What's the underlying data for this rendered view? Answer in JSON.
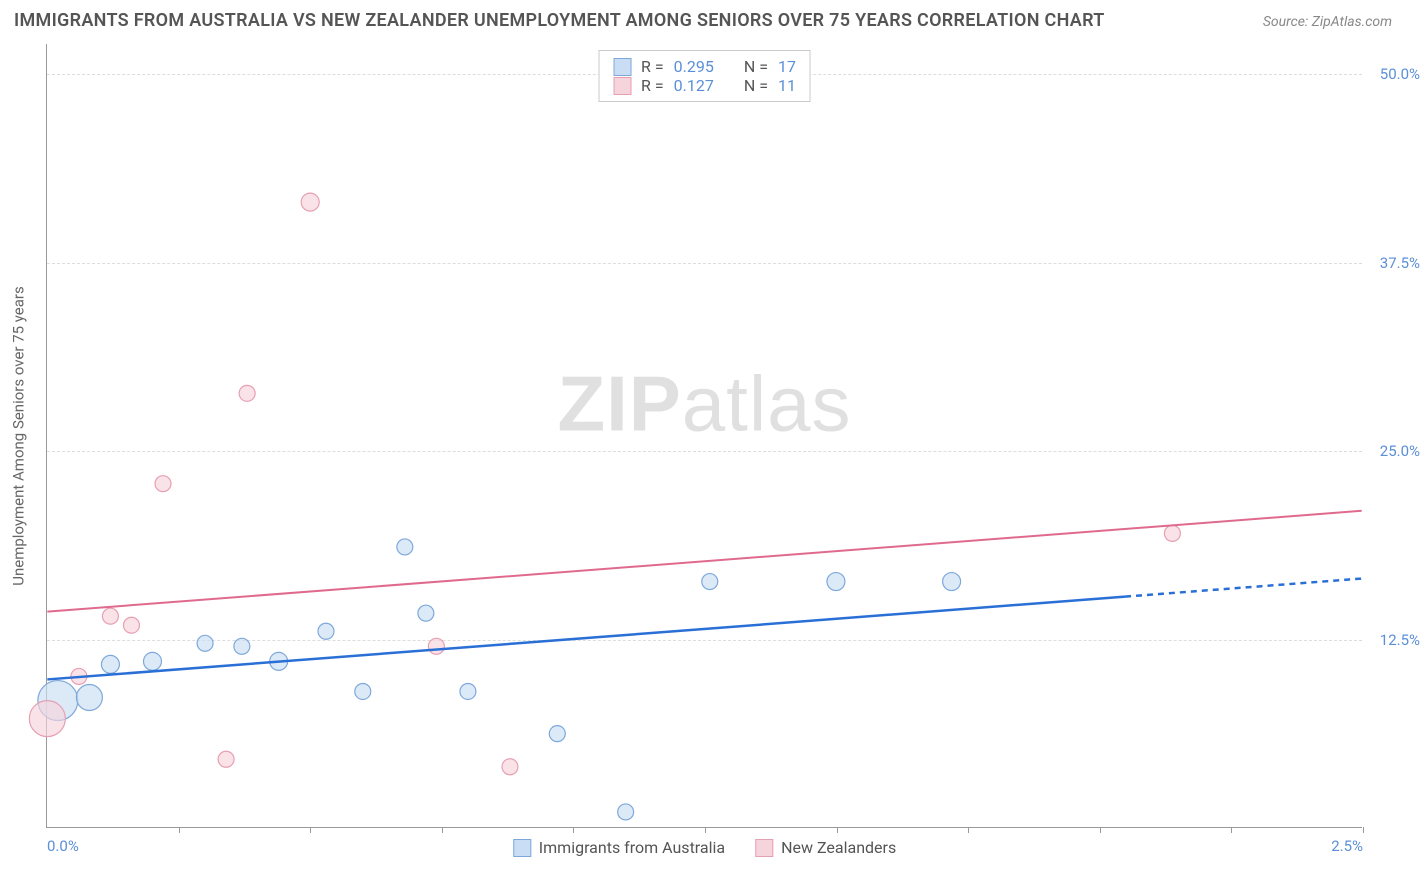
{
  "title": "IMMIGRANTS FROM AUSTRALIA VS NEW ZEALANDER UNEMPLOYMENT AMONG SENIORS OVER 75 YEARS CORRELATION CHART",
  "source": "Source: ZipAtlas.com",
  "y_axis_label": "Unemployment Among Seniors over 75 years",
  "watermark_bold": "ZIP",
  "watermark_light": "atlas",
  "chart": {
    "type": "scatter",
    "background_color": "#ffffff",
    "grid_color": "#dddddd",
    "axis_color": "#999999",
    "tick_label_color": "#5b8fd6",
    "xlim": [
      0.0,
      2.5
    ],
    "ylim": [
      0.0,
      52.0
    ],
    "y_ticks": [
      {
        "val": 12.5,
        "label": "12.5%"
      },
      {
        "val": 25.0,
        "label": "25.0%"
      },
      {
        "val": 37.5,
        "label": "37.5%"
      },
      {
        "val": 50.0,
        "label": "50.0%"
      }
    ],
    "x_ticks_minor": [
      0.25,
      0.5,
      0.75,
      1.0,
      1.25,
      1.5,
      1.75,
      2.0,
      2.25,
      2.5
    ],
    "x_tick_labels": [
      {
        "val": 0.0,
        "label": "0.0%"
      },
      {
        "val": 2.5,
        "label": "2.5%"
      }
    ],
    "series": [
      {
        "name": "Immigrants from Australia",
        "fill": "#c9def4",
        "stroke": "#7ea8da",
        "line_color": "#2a6fd6",
        "line_width": 2.5,
        "R": "0.295",
        "N": "17",
        "points": [
          {
            "x": 0.02,
            "y": 8.4,
            "r": 20
          },
          {
            "x": 0.08,
            "y": 8.6,
            "r": 13
          },
          {
            "x": 0.12,
            "y": 10.8,
            "r": 9
          },
          {
            "x": 0.2,
            "y": 11.0,
            "r": 9
          },
          {
            "x": 0.3,
            "y": 12.2,
            "r": 8
          },
          {
            "x": 0.37,
            "y": 12.0,
            "r": 8
          },
          {
            "x": 0.53,
            "y": 13.0,
            "r": 8
          },
          {
            "x": 0.44,
            "y": 11.0,
            "r": 9
          },
          {
            "x": 0.6,
            "y": 9.0,
            "r": 8
          },
          {
            "x": 0.68,
            "y": 18.6,
            "r": 8
          },
          {
            "x": 0.72,
            "y": 14.2,
            "r": 8
          },
          {
            "x": 0.8,
            "y": 9.0,
            "r": 8
          },
          {
            "x": 0.97,
            "y": 6.2,
            "r": 8
          },
          {
            "x": 1.1,
            "y": 1.0,
            "r": 8
          },
          {
            "x": 1.26,
            "y": 16.3,
            "r": 8
          },
          {
            "x": 1.5,
            "y": 16.3,
            "r": 9
          },
          {
            "x": 1.72,
            "y": 16.3,
            "r": 9
          }
        ],
        "trend": {
          "x1": 0.0,
          "y1": 9.8,
          "x2": 2.05,
          "y2": 15.3,
          "x2_ext": 2.5,
          "y2_ext": 16.5
        }
      },
      {
        "name": "New Zealanders",
        "fill": "#f6d4dc",
        "stroke": "#e79fb2",
        "line_color": "#e06a8d",
        "line_width": 2.0,
        "R": "0.127",
        "N": "11",
        "points": [
          {
            "x": 0.0,
            "y": 7.2,
            "r": 18
          },
          {
            "x": 0.06,
            "y": 10.0,
            "r": 8
          },
          {
            "x": 0.12,
            "y": 14.0,
            "r": 8
          },
          {
            "x": 0.16,
            "y": 13.4,
            "r": 8
          },
          {
            "x": 0.22,
            "y": 22.8,
            "r": 8
          },
          {
            "x": 0.34,
            "y": 4.5,
            "r": 8
          },
          {
            "x": 0.38,
            "y": 28.8,
            "r": 8
          },
          {
            "x": 0.5,
            "y": 41.5,
            "r": 9
          },
          {
            "x": 0.74,
            "y": 12.0,
            "r": 8
          },
          {
            "x": 0.88,
            "y": 4.0,
            "r": 8
          },
          {
            "x": 2.14,
            "y": 19.5,
            "r": 8
          }
        ],
        "trend": {
          "x1": 0.0,
          "y1": 14.3,
          "x2": 2.5,
          "y2": 21.0
        }
      }
    ]
  },
  "legend_top_label_R": "R =",
  "legend_top_label_N": "N ="
}
